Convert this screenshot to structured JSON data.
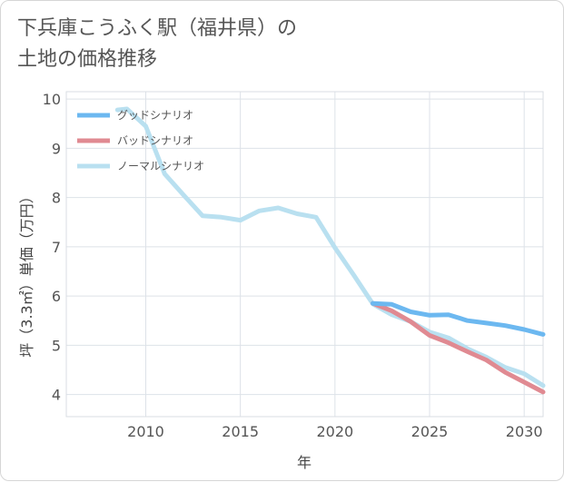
{
  "title_line1": "下兵庫こうふく駅（福井県）の",
  "title_line2": "土地の価格推移",
  "chart_data": {
    "type": "line",
    "title": "下兵庫こうふく駅（福井県）の土地の価格推移",
    "xlabel": "年",
    "ylabel": "坪（3.3㎡）単価（万円）",
    "xlim": [
      2005.8,
      2031.0
    ],
    "ylim": [
      3.55,
      10.15
    ],
    "xticks": [
      2010,
      2015,
      2020,
      2025,
      2030
    ],
    "yticks": [
      4,
      5,
      6,
      7,
      8,
      9,
      10
    ],
    "grid": true,
    "legend_position": "top-left",
    "series": [
      {
        "name": "グッドシナリオ",
        "color": "#6cb8f0",
        "x": [
          2022,
          2023,
          2024,
          2025,
          2026,
          2027,
          2028,
          2029,
          2030,
          2031
        ],
        "y": [
          5.85,
          5.83,
          5.68,
          5.61,
          5.62,
          5.5,
          5.45,
          5.4,
          5.32,
          5.22
        ]
      },
      {
        "name": "バッドシナリオ",
        "color": "#e08a92",
        "x": [
          2022,
          2023,
          2024,
          2025,
          2026,
          2027,
          2028,
          2029,
          2030,
          2031
        ],
        "y": [
          5.85,
          5.7,
          5.48,
          5.2,
          5.05,
          4.87,
          4.7,
          4.45,
          4.25,
          4.05
        ]
      },
      {
        "name": "ノーマルシナリオ",
        "color": "#b9e0f0",
        "x": [
          2008.5,
          2009,
          2010,
          2011,
          2012,
          2013,
          2014,
          2015,
          2016,
          2017,
          2018,
          2019,
          2020,
          2021,
          2022,
          2023,
          2024,
          2025,
          2026,
          2027,
          2028,
          2029,
          2030,
          2031
        ],
        "y": [
          9.78,
          9.8,
          9.45,
          8.48,
          8.05,
          7.63,
          7.6,
          7.54,
          7.73,
          7.79,
          7.67,
          7.6,
          6.98,
          6.42,
          5.84,
          5.62,
          5.48,
          5.27,
          5.15,
          4.93,
          4.76,
          4.55,
          4.42,
          4.18
        ]
      }
    ]
  }
}
